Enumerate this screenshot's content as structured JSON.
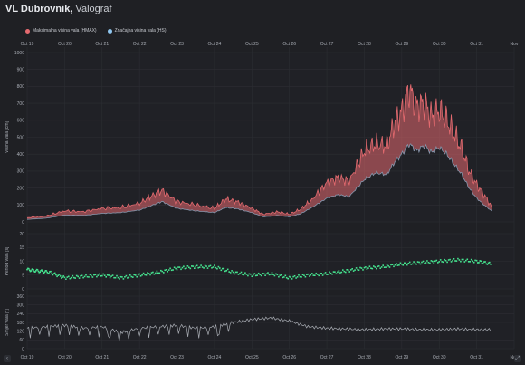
{
  "header": {
    "title_bold": "VL Dubrovnik,",
    "title_rest": " Valograf"
  },
  "legend": [
    {
      "label": "Maksimalna visina vala (HMAX)",
      "color": "#e46a6f"
    },
    {
      "label": "Značajna visina vala (HS)",
      "color": "#8fc6ef"
    }
  ],
  "colors": {
    "hmax": "#e46a6f",
    "hs": "#8797ad",
    "period": "#45e48f",
    "direction": "#a9adb4",
    "grid": "#2c2e33"
  },
  "icons": {
    "left_control": "chevron-left-icon",
    "right_control": "resize-icon"
  },
  "chart_data": [
    {
      "type": "area",
      "ylabel": "Visina vala [cm]",
      "ylim": [
        0,
        1000
      ],
      "yticks": [
        "0",
        "100",
        "200",
        "300",
        "400",
        "500",
        "600",
        "700",
        "800",
        "900",
        "1000"
      ],
      "xticks": [
        "Oct 19",
        "Oct 20",
        "Oct 21",
        "Oct 22",
        "Oct 23",
        "Oct 24",
        "Oct 25",
        "Oct 26",
        "Oct 27",
        "Oct 28",
        "Oct 29",
        "Oct 30",
        "Oct 31",
        "Nov"
      ],
      "x": [
        0,
        0.5,
        1,
        1.5,
        2,
        2.5,
        3,
        3.3,
        3.6,
        4,
        4.5,
        5,
        5.3,
        5.6,
        6,
        6.3,
        6.7,
        7,
        7.3,
        7.6,
        8,
        8.3,
        8.6,
        9,
        9.3,
        9.6,
        9.8,
        10,
        10.2,
        10.4,
        10.6,
        10.8,
        11,
        11.2,
        11.4,
        11.6,
        11.8,
        12,
        12.2,
        12.4
      ],
      "series": [
        {
          "name": "Maksimalna visina vala (HMAX)",
          "values": [
            25,
            35,
            65,
            60,
            80,
            85,
            110,
            150,
            185,
            120,
            100,
            80,
            135,
            120,
            80,
            45,
            60,
            45,
            75,
            130,
            230,
            260,
            240,
            420,
            460,
            450,
            580,
            650,
            780,
            680,
            700,
            620,
            660,
            600,
            520,
            430,
            300,
            220,
            160,
            90
          ]
        },
        {
          "name": "Značajna visina vala (HS)",
          "values": [
            15,
            22,
            40,
            38,
            50,
            55,
            70,
            95,
            120,
            80,
            65,
            55,
            85,
            78,
            55,
            30,
            38,
            30,
            48,
            85,
            140,
            160,
            150,
            250,
            290,
            280,
            350,
            400,
            460,
            420,
            450,
            410,
            440,
            400,
            340,
            280,
            200,
            140,
            100,
            65
          ]
        }
      ]
    },
    {
      "type": "scatter",
      "ylabel": "Period vala [s]",
      "ylim": [
        0,
        20
      ],
      "yticks": [
        "0",
        "5",
        "10",
        "15",
        "20"
      ],
      "series": [
        {
          "name": "Period",
          "x": [
            0,
            0.3,
            0.6,
            1,
            1.5,
            2,
            2.5,
            3,
            3.5,
            4,
            4.5,
            5,
            5.5,
            6,
            6.5,
            7,
            7.5,
            8,
            8.5,
            9,
            9.5,
            10,
            10.5,
            11,
            11.5,
            12,
            12.4
          ],
          "values": [
            7,
            6.5,
            6,
            4,
            4.5,
            5,
            4,
            5,
            6,
            7.5,
            8,
            8,
            6,
            5,
            5.5,
            4,
            5,
            5.5,
            6.5,
            7.5,
            8,
            9,
            9.5,
            10,
            10.5,
            10,
            9
          ]
        }
      ]
    },
    {
      "type": "line",
      "ylabel": "Smjer vala [°]",
      "ylim": [
        0,
        360
      ],
      "yticks": [
        "0",
        "60",
        "120",
        "180",
        "240",
        "300",
        "360"
      ],
      "series": [
        {
          "name": "Smjer",
          "x": [
            0,
            0.5,
            1,
            1.5,
            2,
            2.5,
            3,
            3.5,
            4,
            4.5,
            5,
            5.5,
            6,
            6.5,
            7,
            7.5,
            8,
            8.5,
            9,
            9.5,
            10,
            10.5,
            11,
            11.5,
            12,
            12.4
          ],
          "values": [
            140,
            150,
            160,
            140,
            150,
            110,
            140,
            150,
            160,
            140,
            150,
            180,
            200,
            210,
            190,
            150,
            140,
            135,
            130,
            135,
            135,
            130,
            130,
            135,
            130,
            130
          ]
        }
      ]
    }
  ]
}
